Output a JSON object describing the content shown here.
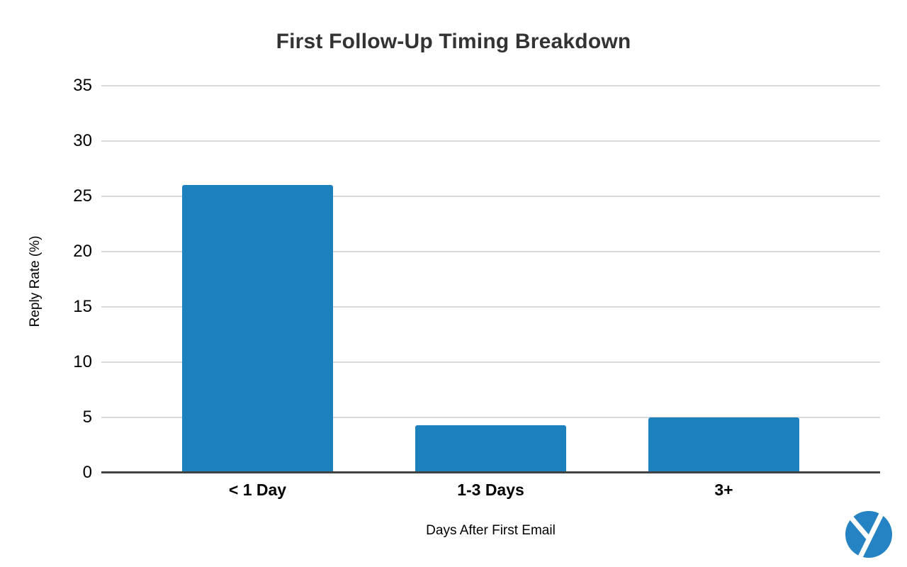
{
  "chart_data": {
    "type": "bar",
    "title": "First Follow-Up Timing Breakdown",
    "xlabel": "Days After First Email",
    "ylabel": "Reply Rate (%)",
    "categories": [
      "< 1 Day",
      "1-3 Days",
      "3+"
    ],
    "values": [
      26,
      4.3,
      5
    ],
    "ylim": [
      0,
      35
    ],
    "yticks": [
      0,
      5,
      10,
      15,
      20,
      25,
      30,
      35
    ],
    "grid": "horizontal-light",
    "legend": "none",
    "bar_color": "#1d81bd"
  },
  "colors": {
    "background": "#ffffff",
    "title_text": "#333333",
    "axis_text": "#000000",
    "gridline": "#d9d9d9",
    "axis_line": "#424242",
    "logo": "#2583c3"
  },
  "branding": {
    "logo_icon": "y-circle-logo"
  }
}
